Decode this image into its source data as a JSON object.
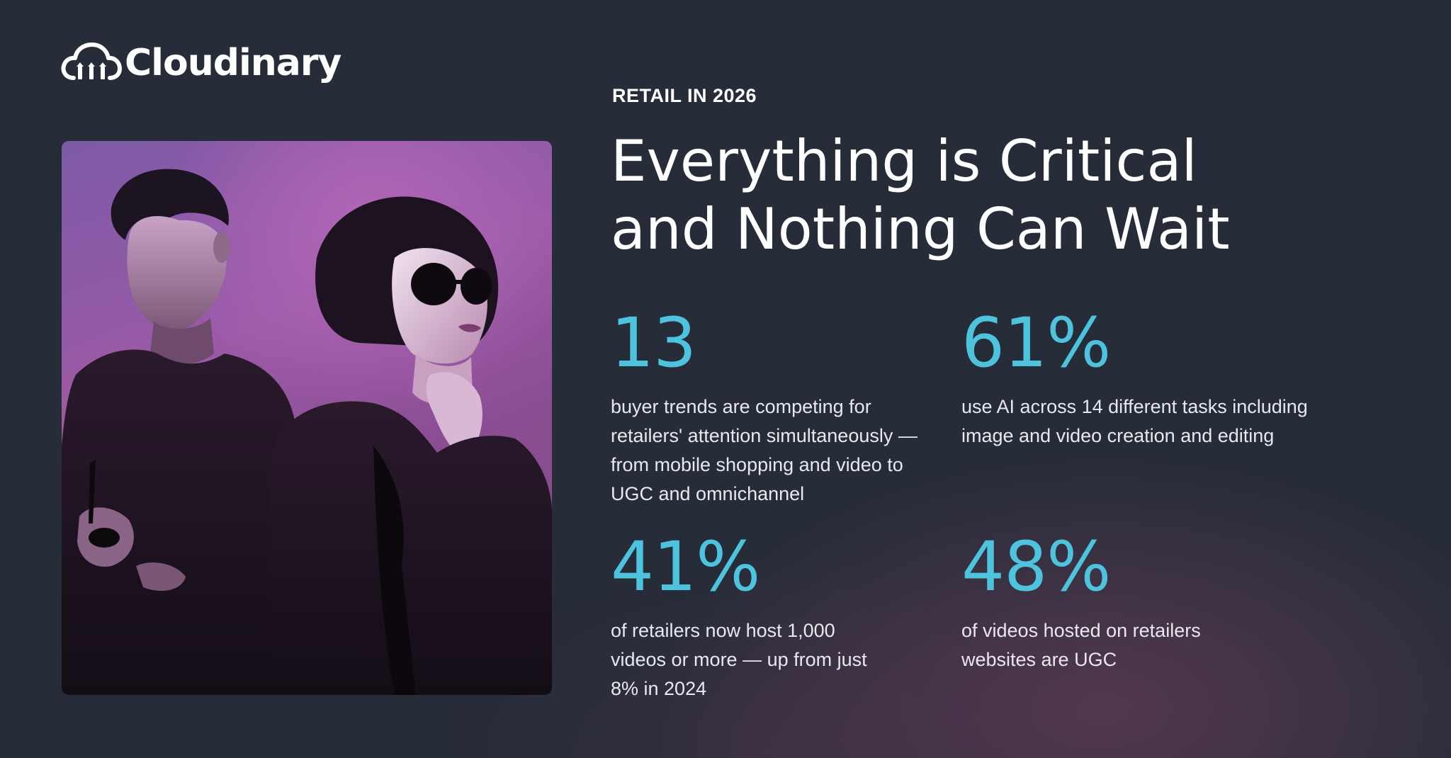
{
  "brand": {
    "name": "Cloudinary",
    "logo_icon": "cloud-logo-icon"
  },
  "hero": {
    "eyebrow": "RETAIL IN 2026",
    "headline_line_1": "Everything is Critical",
    "headline_line_2": "and Nothing Can Wait"
  },
  "photo": {
    "subject": "fashion-models-photo",
    "tint_colors": [
      "#7d5aa6",
      "#b466b8",
      "#a55b86"
    ]
  },
  "stats": [
    {
      "value": "13",
      "description": "buyer trends are competing for retailers' attention simultaneously — from mobile shopping and video to UGC and omnichannel"
    },
    {
      "value": "61%",
      "description": "use AI across 14 different tasks including image and video creation and editing"
    },
    {
      "value": "41%",
      "description": "of retailers now host 1,000 videos or more — up from just 8% in 2024"
    },
    {
      "value": "48%",
      "description": "of videos hosted on retailers websites are UGC"
    }
  ],
  "colors": {
    "background": "#262c38",
    "accent": "#4ec3de",
    "text": "#ffffff"
  }
}
